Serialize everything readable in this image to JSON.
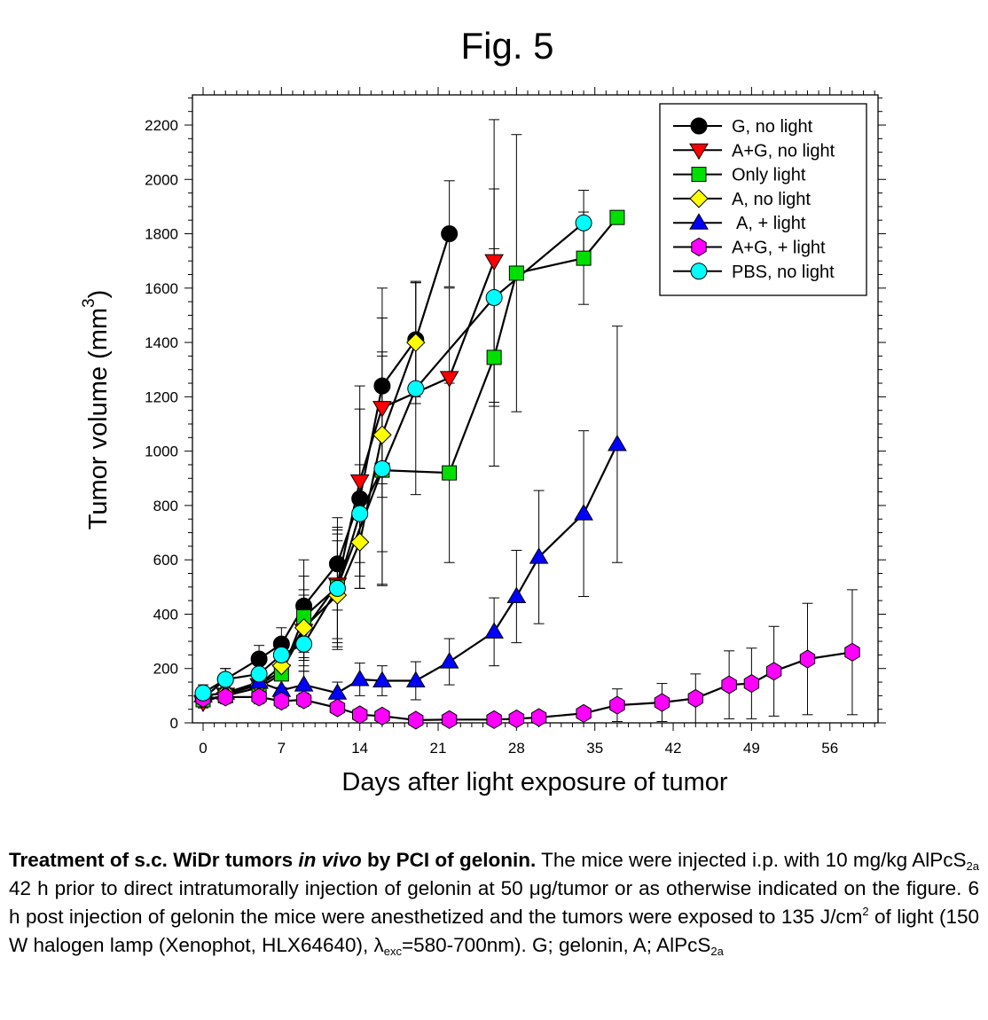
{
  "figure": {
    "title": "Fig. 5"
  },
  "chart_data": {
    "type": "line",
    "title": "Fig. 5",
    "xlabel": "Days after light exposure of tumor",
    "ylabel": "Tumor volume (mm",
    "ylabel_superscript": "3",
    "ylabel_close": ")",
    "xlim": [
      -1,
      60
    ],
    "ylim": [
      0,
      2300
    ],
    "x_ticks": [
      0,
      7,
      14,
      21,
      28,
      35,
      42,
      49,
      56
    ],
    "x_tick_labels": [
      "0",
      "7",
      "14",
      "21",
      "28",
      "35",
      "42",
      "49",
      "56"
    ],
    "x_minor_step": 1,
    "y_ticks": [
      0,
      200,
      400,
      600,
      800,
      1000,
      1200,
      1400,
      1600,
      1800,
      2000,
      2200
    ],
    "y_tick_labels": [
      "0",
      "200",
      "400",
      "600",
      "800",
      "1000",
      "1200",
      "1400",
      "1600",
      "1800",
      "2000",
      "2200"
    ],
    "y_minor_step": 50,
    "grid": false,
    "legend_position": "top-right",
    "series": [
      {
        "name": "G, no light",
        "marker": "circle",
        "color": "#000000",
        "x": [
          0,
          2,
          5,
          7,
          9,
          12,
          14,
          16,
          19,
          22
        ],
        "y": [
          90,
          160,
          235,
          290,
          430,
          585,
          825,
          1240,
          1410,
          1800
        ],
        "err": [
          30,
          40,
          50,
          60,
          170,
          170,
          330,
          360,
          210,
          195
        ]
      },
      {
        "name": "A+G, no light",
        "marker": "triangle-down",
        "color": "#ff0000",
        "x": [
          0,
          2,
          5,
          7,
          9,
          12,
          14,
          16,
          22,
          26
        ],
        "y": [
          75,
          105,
          140,
          190,
          340,
          510,
          890,
          1160,
          1270,
          1700
        ],
        "err": [
          20,
          30,
          40,
          60,
          150,
          200,
          350,
          330,
          330,
          520
        ]
      },
      {
        "name": "Only light",
        "marker": "square",
        "color": "#00e000",
        "x": [
          0,
          2,
          5,
          7,
          9,
          12,
          16,
          22,
          26,
          28,
          34,
          37
        ],
        "y": [
          85,
          100,
          130,
          180,
          390,
          500,
          930,
          920,
          1345,
          1655,
          1710,
          1860
        ],
        "err": [
          25,
          30,
          40,
          50,
          150,
          220,
          420,
          330,
          400,
          510,
          170,
          0
        ]
      },
      {
        "name": "A, no light",
        "marker": "diamond",
        "color": "#ffff00",
        "x": [
          0,
          2,
          5,
          7,
          9,
          12,
          14,
          16,
          19
        ],
        "y": [
          100,
          110,
          140,
          210,
          350,
          470,
          665,
          1060,
          1400
        ],
        "err": [
          25,
          30,
          40,
          50,
          120,
          200,
          170,
          430,
          225
        ]
      },
      {
        "name": "A, + light",
        "marker": "triangle-up",
        "color": "#0000ff",
        "x": [
          0,
          2,
          5,
          7,
          9,
          12,
          14,
          16,
          19,
          22,
          26,
          28,
          30,
          34,
          37
        ],
        "y": [
          100,
          110,
          150,
          120,
          140,
          110,
          160,
          155,
          155,
          225,
          335,
          465,
          610,
          770,
          1025
        ],
        "err": [
          25,
          30,
          40,
          40,
          50,
          40,
          60,
          55,
          70,
          85,
          125,
          170,
          245,
          305,
          435
        ]
      },
      {
        "name": "A+G, + light",
        "marker": "hexagon",
        "color": "#ff00ff",
        "x": [
          0,
          2,
          5,
          7,
          9,
          12,
          14,
          16,
          19,
          22,
          26,
          28,
          30,
          34,
          37,
          41,
          44,
          47,
          49,
          51,
          54,
          58
        ],
        "y": [
          90,
          95,
          95,
          80,
          85,
          55,
          30,
          25,
          10,
          12,
          12,
          15,
          20,
          35,
          65,
          75,
          90,
          140,
          145,
          190,
          235,
          260
        ],
        "err": [
          20,
          20,
          25,
          25,
          25,
          20,
          15,
          15,
          10,
          10,
          10,
          10,
          12,
          20,
          60,
          70,
          90,
          125,
          130,
          165,
          205,
          230
        ]
      },
      {
        "name": "PBS, no light",
        "marker": "circle",
        "color": "#00ffff",
        "x": [
          0,
          2,
          5,
          7,
          9,
          12,
          14,
          16,
          19,
          26,
          34
        ],
        "y": [
          110,
          160,
          180,
          250,
          290,
          495,
          770,
          935,
          1230,
          1565,
          1840
        ],
        "err": [
          30,
          40,
          50,
          60,
          80,
          200,
          180,
          430,
          390,
          400,
          120
        ]
      }
    ]
  },
  "caption": {
    "bold_part1": "Treatment of s.c. WiDr tumors ",
    "bold_italic": "in vivo",
    "bold_part2": " by PCI of gelonin.",
    "text1": " The mice were injected i.p. with 10 mg/kg AlPcS",
    "sub1": "2a",
    "text2": " 42 h prior to direct intratumorally injection of gelonin at 50 μg/tumor or as otherwise indicated on the figure. 6 h post injection of gelonin the mice were anesthetized and the tumors were exposed to 135 J/cm",
    "sup1": "2",
    "text3": " of light (150 W halogen lamp (Xenophot, HLX64640), λ",
    "sub2": "exc",
    "text4": "=580-700nm). G; gelonin, A; AlPcS",
    "sub3": "2a"
  }
}
